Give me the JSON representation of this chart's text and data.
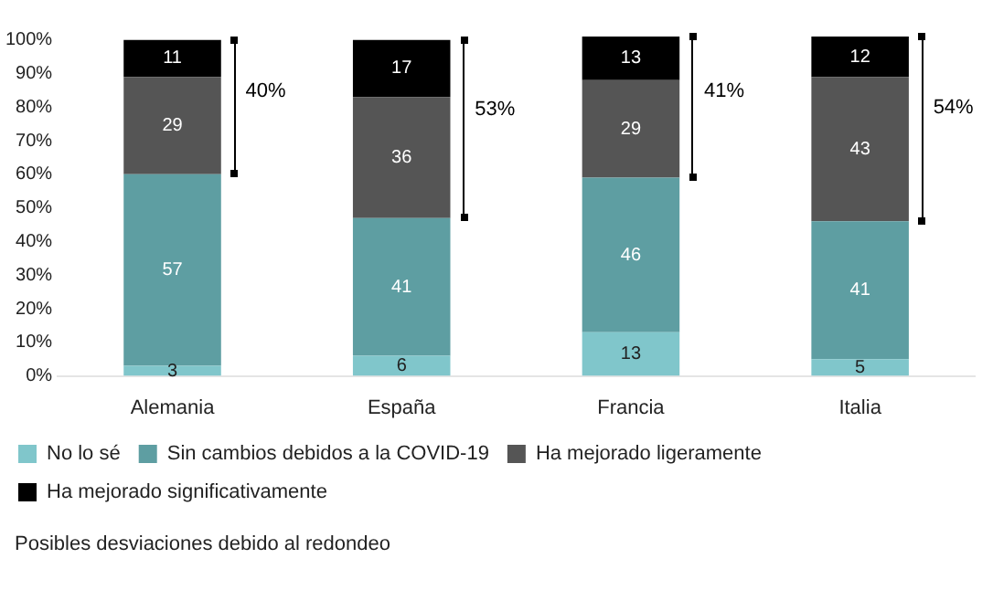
{
  "chart_data": {
    "type": "bar",
    "stacked": true,
    "categories": [
      "Alemania",
      "España",
      "Francia",
      "Italia"
    ],
    "series": [
      {
        "name": "No lo sé",
        "color": "#80c6cb",
        "values": [
          3,
          6,
          13,
          5
        ]
      },
      {
        "name": "Sin cambios debidos a la COVID-19",
        "color": "#5e9ea2",
        "values": [
          57,
          41,
          46,
          41
        ]
      },
      {
        "name": "Ha mejorado ligeramente",
        "color": "#555555",
        "values": [
          29,
          36,
          29,
          43
        ]
      },
      {
        "name": "Ha mejorado significativamente",
        "color": "#000000",
        "values": [
          11,
          17,
          13,
          12
        ]
      }
    ],
    "ylim": [
      0,
      101
    ],
    "yticks": [
      {
        "value": 0,
        "label": "0%"
      },
      {
        "value": 10,
        "label": "10%"
      },
      {
        "value": 20,
        "label": "20%"
      },
      {
        "value": 30,
        "label": "30%"
      },
      {
        "value": 40,
        "label": "40%"
      },
      {
        "value": 50,
        "label": "50%"
      },
      {
        "value": 60,
        "label": "60%"
      },
      {
        "value": 70,
        "label": "70%"
      },
      {
        "value": 80,
        "label": "80%"
      },
      {
        "value": 90,
        "label": "90%"
      },
      {
        "value": 100,
        "label": "100%"
      }
    ],
    "data_labels": true,
    "legend": "bottom",
    "annotations": [
      "40%",
      "53%",
      "41%",
      "54%",
      "Posibles desviaciones debido al redondeo"
    ]
  }
}
